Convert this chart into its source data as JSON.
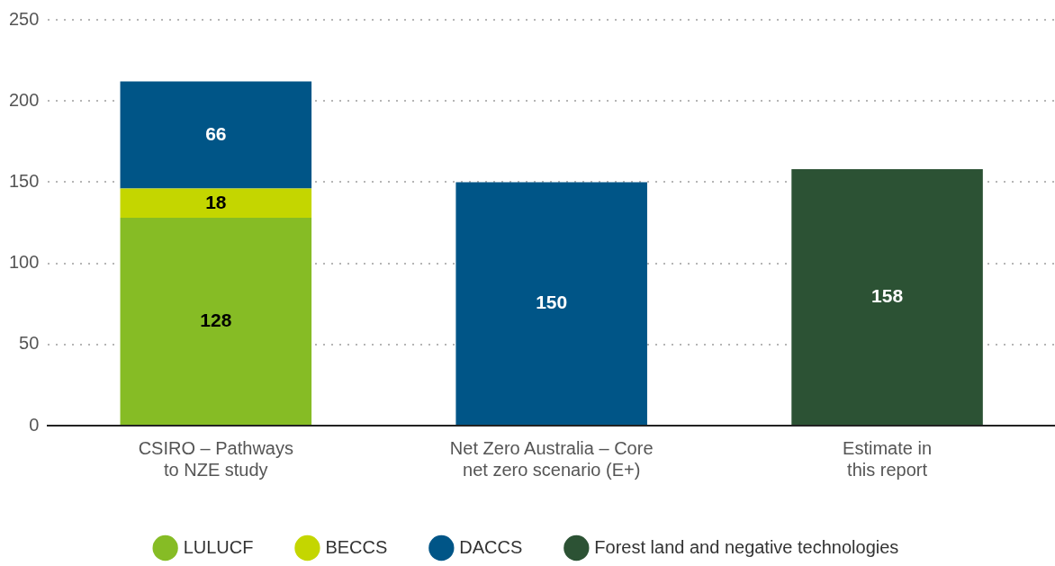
{
  "chart_data": {
    "type": "bar",
    "stacked": true,
    "categories": [
      "CSIRO – Pathways to NZE study",
      "Net Zero Australia – Core net zero scenario (E+)",
      "Estimate in this report"
    ],
    "series": [
      {
        "name": "LULUCF",
        "color": "#86bc25",
        "values": [
          128,
          null,
          null
        ]
      },
      {
        "name": "BECCS",
        "color": "#c4d600",
        "values": [
          18,
          null,
          null
        ]
      },
      {
        "name": "DACCS",
        "color": "#005587",
        "values": [
          66,
          150,
          null
        ]
      },
      {
        "name": "Forest land and negative technologies",
        "color": "#2c5234",
        "values": [
          null,
          null,
          158
        ]
      }
    ],
    "ylim": [
      0,
      250
    ],
    "yticks": [
      0,
      50,
      100,
      150,
      200,
      250
    ],
    "grid": "y",
    "legend": "bottom",
    "data_labels": true
  }
}
